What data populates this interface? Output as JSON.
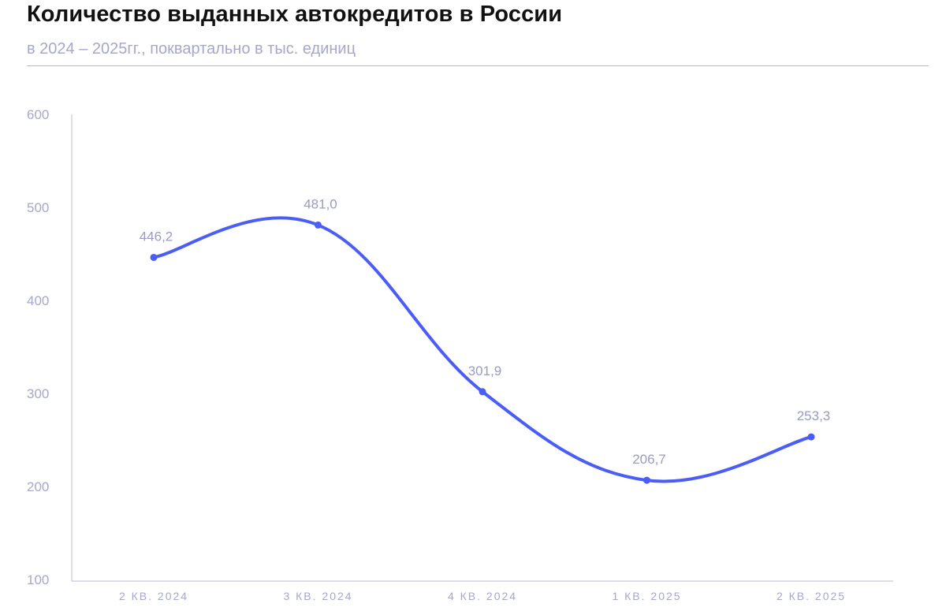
{
  "header": {
    "title": "Количество выданных автокредитов в России",
    "subtitle": "в 2024 – 2025гг., поквартально в тыс. единиц"
  },
  "colors": {
    "line": "#4a5ef7",
    "axis": "#c7c7dd",
    "tick_text": "#a6a6cf"
  },
  "chart_data": {
    "type": "line",
    "title": "Количество выданных автокредитов в России",
    "subtitle": "в 2024 – 2025гг., поквартально в тыс. единиц",
    "categories": [
      "2 КВ. 2024",
      "3 КВ. 2024",
      "4 КВ. 2024",
      "1 КВ. 2025",
      "2 КВ. 2025"
    ],
    "series": [
      {
        "values": [
          446.2,
          481.0,
          301.9,
          206.7,
          253.3
        ],
        "labels": [
          "446,2",
          "481,0",
          "301,9",
          "206,7",
          "253,3"
        ]
      }
    ],
    "yticks": [
      100,
      200,
      300,
      400,
      500,
      600
    ],
    "ylim": [
      100,
      600
    ],
    "xlabel": "",
    "ylabel": "",
    "grid": false,
    "smooth": true
  }
}
